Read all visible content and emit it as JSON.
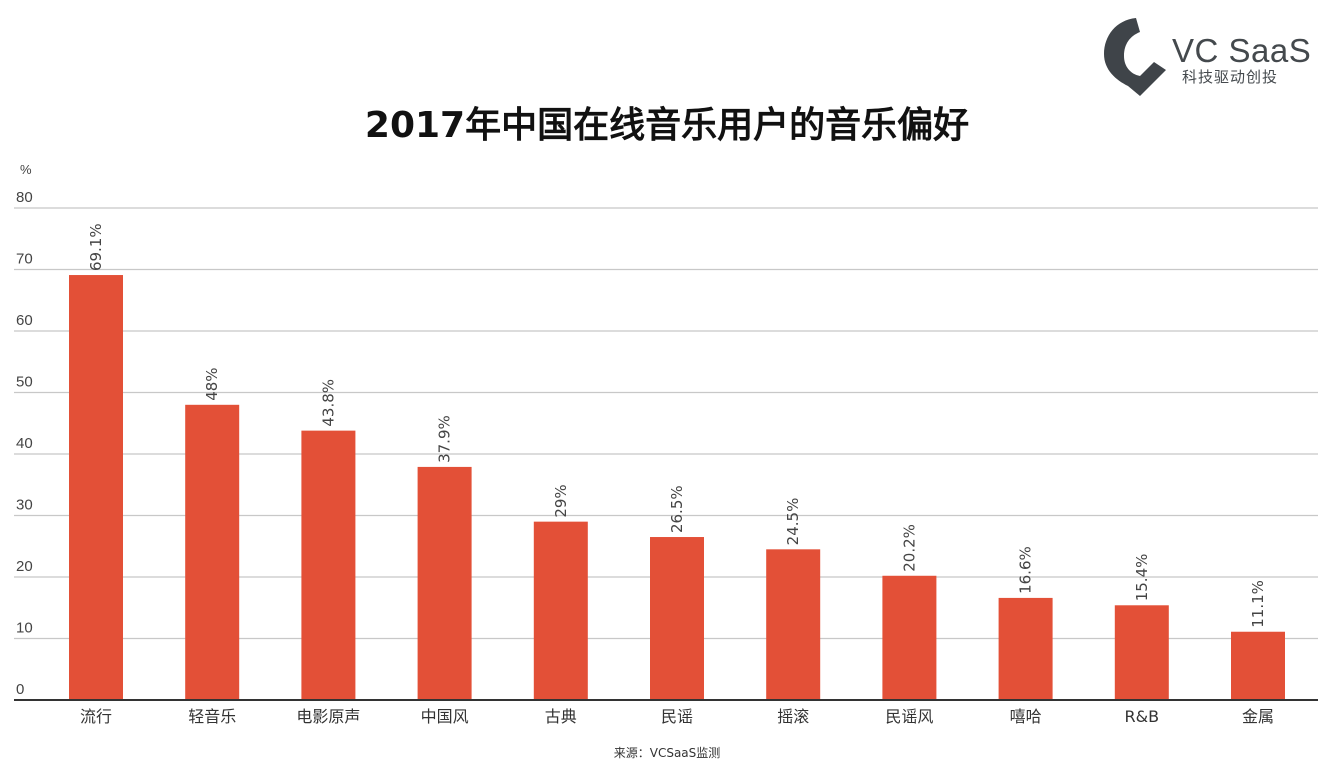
{
  "title": "2017年中国在线音乐用户的音乐偏好",
  "logo": {
    "brand": "VC SaaS",
    "slogan": "科技驱动创投",
    "icon": "vcsaas-logo-mark"
  },
  "source": "来源：VCSaaS监测",
  "colors": {
    "bar": "#e35037",
    "grid": "#c8c8c8",
    "axis": "#333333",
    "text": "#444444"
  },
  "chart_data": {
    "type": "bar",
    "title": "2017年中国在线音乐用户的音乐偏好",
    "ylabel": "%",
    "xlabel": "",
    "ylim": [
      0,
      80
    ],
    "yticks": [
      0,
      10,
      20,
      30,
      40,
      50,
      60,
      70,
      80
    ],
    "grid": true,
    "categories": [
      "流行",
      "轻音乐",
      "电影原声",
      "中国风",
      "古典",
      "民谣",
      "摇滚",
      "民谣风",
      "嘻哈",
      "R&B",
      "金属"
    ],
    "values": [
      69.1,
      48,
      43.8,
      37.9,
      29,
      26.5,
      24.5,
      20.2,
      16.6,
      15.4,
      11.1
    ],
    "data_labels": [
      "69.1%",
      "48%",
      "43.8%",
      "37.9%",
      "29%",
      "26.5%",
      "24.5%",
      "20.2%",
      "16.6%",
      "15.4%",
      "11.1%"
    ]
  }
}
